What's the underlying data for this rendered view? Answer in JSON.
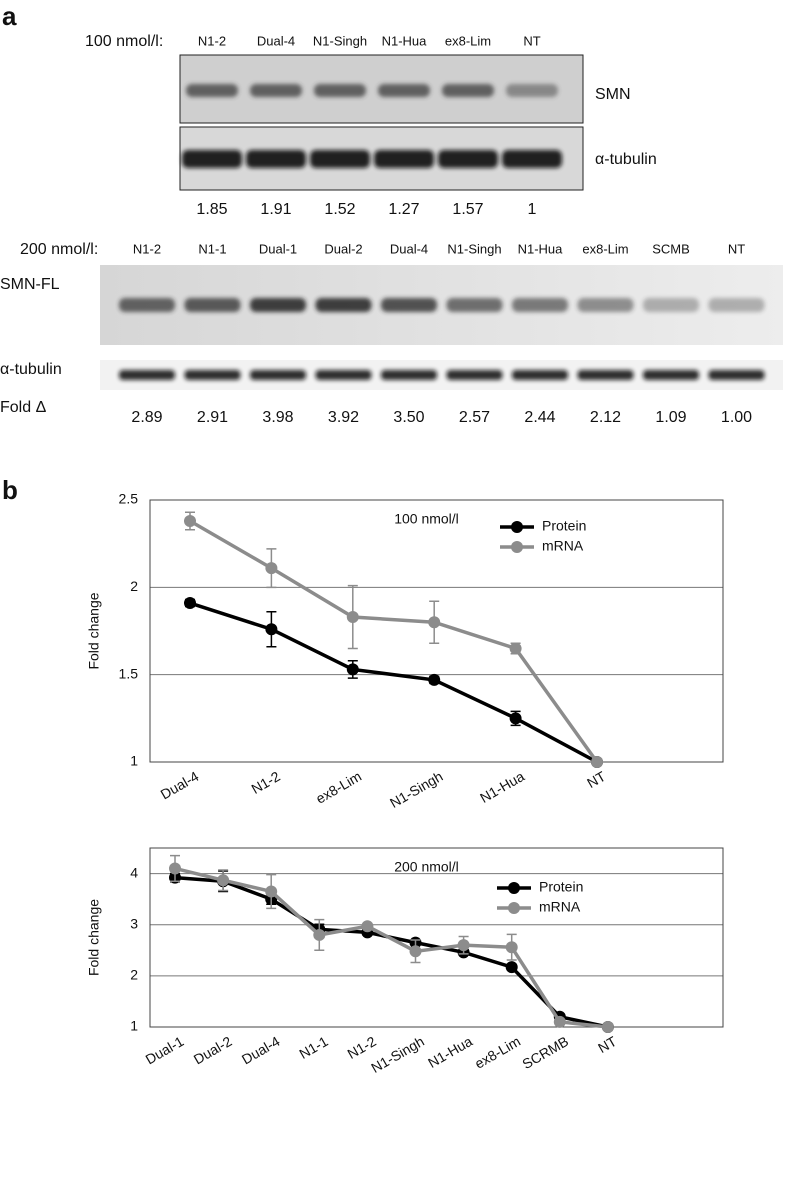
{
  "panel_a": {
    "label": "a",
    "blot1": {
      "concentration": "100 nmol/l:",
      "lanes": [
        "N1-2",
        "Dual-4",
        "N1-Singh",
        "N1-Hua",
        "ex8-Lim",
        "NT"
      ],
      "rows": [
        "SMN",
        "α-tubulin"
      ],
      "fold": [
        "1.85",
        "1.91",
        "1.52",
        "1.27",
        "1.57",
        "1"
      ]
    },
    "blot2": {
      "concentration": "200 nmol/l:",
      "lanes": [
        "N1-2",
        "N1-1",
        "Dual-1",
        "Dual-2",
        "Dual-4",
        "N1-Singh",
        "N1-Hua",
        "ex8-Lim",
        "SCMB",
        "NT"
      ],
      "rows": [
        "SMN-FL",
        "α-tubulin"
      ],
      "fold_label": "Fold Δ",
      "fold": [
        "2.89",
        "2.91",
        "3.98",
        "3.92",
        "3.50",
        "2.57",
        "2.44",
        "2.12",
        "1.09",
        "1.00"
      ]
    }
  },
  "panel_b_label": "b",
  "chart_data": [
    {
      "type": "line",
      "title": "100 nmol/l",
      "y_label": "Fold change",
      "categories": [
        "Dual-4",
        "N1-2",
        "ex8-Lim",
        "N1-Singh",
        "N1-Hua",
        "NT"
      ],
      "series": [
        {
          "name": "Protein",
          "color": "#000000",
          "values": [
            1.91,
            1.76,
            1.53,
            1.47,
            1.25,
            1.0
          ],
          "errors": [
            0.02,
            0.1,
            0.05,
            0.02,
            0.04,
            0
          ]
        },
        {
          "name": "mRNA",
          "color": "#8c8c8c",
          "values": [
            2.38,
            2.11,
            1.83,
            1.8,
            1.65,
            1.0
          ],
          "errors": [
            0.05,
            0.11,
            0.18,
            0.12,
            0.03,
            0
          ]
        }
      ],
      "ylim": [
        1,
        2.5
      ],
      "yticks": [
        1,
        1.5,
        2,
        2.5
      ],
      "grid": true,
      "legend": "upper right"
    },
    {
      "type": "line",
      "title": "200 nmol/l",
      "y_label": "Fold change",
      "categories": [
        "Dual-1",
        "Dual-2",
        "Dual-4",
        "N1-1",
        "N1-2",
        "N1-Singh",
        "N1-Hua",
        "ex8-Lim",
        "SCRMB",
        "NT"
      ],
      "series": [
        {
          "name": "Protein",
          "color": "#000000",
          "values": [
            3.92,
            3.85,
            3.5,
            2.91,
            2.85,
            2.65,
            2.46,
            2.17,
            1.2,
            1.0
          ],
          "errors": [
            0.08,
            0.2,
            0.1,
            0.1,
            0.05,
            0.03,
            0.05,
            0.05,
            0.05,
            0
          ]
        },
        {
          "name": "mRNA",
          "color": "#8c8c8c",
          "values": [
            4.1,
            3.87,
            3.65,
            2.8,
            2.97,
            2.48,
            2.6,
            2.56,
            1.1,
            1.0
          ],
          "errors": [
            0.25,
            0.2,
            0.33,
            0.3,
            0.03,
            0.22,
            0.17,
            0.25,
            0.05,
            0
          ]
        }
      ],
      "ylim": [
        1,
        4.5
      ],
      "yticks": [
        1,
        2,
        3,
        4
      ],
      "grid": true,
      "legend": "upper right"
    }
  ]
}
